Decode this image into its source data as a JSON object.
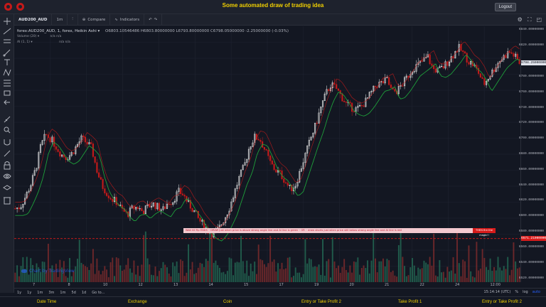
{
  "app": {
    "title": "Some automated draw of trading idea",
    "logout_label": "Logout"
  },
  "toolbar": {
    "symbol": "AUD200_AUD",
    "interval": "1m",
    "compare_label": "Compare",
    "indicators_label": "Indicators"
  },
  "legend": {
    "main": "forex:AUD200_AUD, 1, forex, Heikin Ashi ▾",
    "ohlc": "O6803.10546486  H6803.80000000  L6793.80000000  C6798.05000000  -2.25000000 (-0.03%)",
    "volume_label": "Volume (20) ▾",
    "volume_vals": "n/a   n/a",
    "ai_label": "AI (1, 1) ▾",
    "ai_vals": "n/a   n/a"
  },
  "price_scale": {
    "labels": [
      "6840.00000000",
      "6820.00000000",
      "6780.00000000",
      "6760.00000000",
      "6740.00000000",
      "6720.00000000",
      "6700.00000000",
      "6680.00000000",
      "6660.00000000",
      "6640.00000000",
      "6620.00000000",
      "6600.00000000",
      "6580.00000000",
      "6560.00000000",
      "6540.00000000",
      "6520.00000000"
    ],
    "current": "6798.25000000",
    "marker": "6571.21000000"
  },
  "time_axis": {
    "labels": [
      "7",
      "8",
      "10",
      "12",
      "13",
      "14",
      "15",
      "17",
      "19",
      "20",
      "21",
      "22",
      "24",
      "12:00"
    ]
  },
  "signal": {
    "text": "Wait till Fip ENDS   ◦   DRAW just when price is above strong angle line and AI line is green   ◦   OR   ◦   draw shorts just when price still below strong angle line and AI line is red",
    "tag": "THEN fire the magic!!"
  },
  "watermark": "Chart by TradingView",
  "range": {
    "buttons": [
      "1y",
      "1y",
      "1m",
      "3m",
      "1m",
      "5d",
      "1d",
      "Go to..."
    ],
    "time": "15:14:14 (UTC)",
    "pct": "%",
    "log": "log",
    "auto": "auto"
  },
  "bottom_bar": {
    "labels": [
      "Date Time",
      "Exchange",
      "Coin",
      "Entry or Take Profit 2",
      "Take Profit 1",
      "Entry or Take Profit 2"
    ]
  },
  "colors": {
    "up": "#e8e8e8",
    "down": "#c41a1a",
    "ai_line": "#1e9e3a",
    "signal_line": "#d81b1b",
    "vol_up": "#26735a",
    "vol_down": "#8a2d2d"
  },
  "chart_data": {
    "type": "line",
    "series": [
      {
        "values": [
          6610,
          6612,
          6625,
          6640,
          6660,
          6690,
          6705,
          6700,
          6690,
          6680,
          6676,
          6680,
          6690,
          6700,
          6695,
          6688,
          6660,
          6640,
          6630,
          6622,
          6618,
          6608,
          6602,
          6610,
          6612,
          6606,
          6612,
          6616,
          6612,
          6608,
          6618,
          6620,
          6632,
          6628,
          6616,
          6608,
          6596,
          6588,
          6580,
          6577,
          6584,
          6596,
          6610,
          6630,
          6650,
          6665,
          6690,
          6702,
          6700,
          6686,
          6670,
          6660,
          6655,
          6645,
          6635,
          6640,
          6660,
          6680,
          6700,
          6718,
          6740,
          6758,
          6770,
          6765,
          6755,
          6745,
          6740,
          6738,
          6742,
          6750,
          6760,
          6770,
          6772,
          6776,
          6760,
          6762,
          6770,
          6780,
          6790,
          6795,
          6800,
          6806,
          6790,
          6788,
          6792,
          6800,
          6808,
          6818,
          6810,
          6800,
          6795,
          6785,
          6770,
          6780,
          6790,
          6800,
          6806,
          6812,
          6807,
          6798
        ]
      }
    ],
    "ylim": [
      6515,
      6845
    ]
  }
}
